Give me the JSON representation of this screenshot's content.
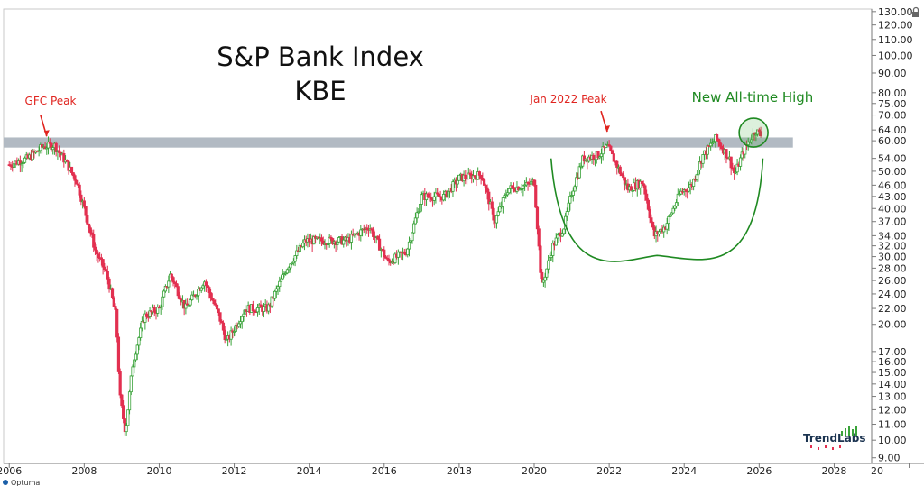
{
  "chart_data": {
    "type": "candlestick",
    "title_line1": "S&P Bank Index",
    "title_line2": "KBE",
    "y_scale": "log",
    "ylim": [
      8.7,
      132
    ],
    "xlim": [
      2005.85,
      2029.0
    ],
    "y_ticks": [
      "130.00",
      "120.00",
      "110.00",
      "100.00",
      "90.00",
      "80.00",
      "75.00",
      "70.00",
      "64.00",
      "60.00",
      "54.00",
      "50.00",
      "46.00",
      "43.00",
      "40.00",
      "37.00",
      "34.00",
      "32.00",
      "30.00",
      "28.00",
      "26.00",
      "24.00",
      "22.00",
      "20.00",
      "17.00",
      "16.00",
      "15.00",
      "14.00",
      "13.00",
      "12.00",
      "11.00",
      "10.00",
      "9.00"
    ],
    "x_ticks": [
      "2006",
      "2008",
      "2010",
      "2012",
      "2014",
      "2016",
      "2018",
      "2020",
      "2022",
      "2024",
      "2026",
      "2028",
      "20"
    ],
    "resistance_band": {
      "low": 57.6,
      "high": 61.2,
      "x_start": 2005.85,
      "x_end": 2026.9
    },
    "key_points": [
      {
        "t": 2006.0,
        "v": 52
      },
      {
        "t": 2006.5,
        "v": 54
      },
      {
        "t": 2006.9,
        "v": 58
      },
      {
        "t": 2007.2,
        "v": 58.5
      },
      {
        "t": 2007.5,
        "v": 53
      },
      {
        "t": 2007.8,
        "v": 47
      },
      {
        "t": 2008.0,
        "v": 40
      },
      {
        "t": 2008.3,
        "v": 31
      },
      {
        "t": 2008.6,
        "v": 27
      },
      {
        "t": 2008.85,
        "v": 21
      },
      {
        "t": 2008.95,
        "v": 13
      },
      {
        "t": 2009.1,
        "v": 10.5
      },
      {
        "t": 2009.3,
        "v": 16
      },
      {
        "t": 2009.6,
        "v": 21
      },
      {
        "t": 2010.0,
        "v": 22
      },
      {
        "t": 2010.3,
        "v": 27
      },
      {
        "t": 2010.7,
        "v": 22
      },
      {
        "t": 2011.2,
        "v": 26
      },
      {
        "t": 2011.6,
        "v": 21
      },
      {
        "t": 2011.8,
        "v": 18
      },
      {
        "t": 2012.3,
        "v": 22
      },
      {
        "t": 2012.9,
        "v": 22
      },
      {
        "t": 2013.4,
        "v": 28
      },
      {
        "t": 2013.9,
        "v": 33
      },
      {
        "t": 2014.5,
        "v": 33
      },
      {
        "t": 2015.0,
        "v": 33
      },
      {
        "t": 2015.6,
        "v": 36
      },
      {
        "t": 2016.1,
        "v": 29
      },
      {
        "t": 2016.6,
        "v": 31
      },
      {
        "t": 2017.0,
        "v": 43
      },
      {
        "t": 2017.6,
        "v": 43
      },
      {
        "t": 2018.0,
        "v": 48
      },
      {
        "t": 2018.6,
        "v": 49
      },
      {
        "t": 2018.95,
        "v": 37
      },
      {
        "t": 2019.3,
        "v": 45
      },
      {
        "t": 2019.8,
        "v": 46
      },
      {
        "t": 2020.0,
        "v": 47
      },
      {
        "t": 2020.2,
        "v": 25
      },
      {
        "t": 2020.5,
        "v": 32
      },
      {
        "t": 2020.8,
        "v": 36
      },
      {
        "t": 2021.0,
        "v": 44
      },
      {
        "t": 2021.3,
        "v": 54
      },
      {
        "t": 2021.7,
        "v": 55
      },
      {
        "t": 2021.95,
        "v": 58
      },
      {
        "t": 2022.2,
        "v": 52
      },
      {
        "t": 2022.5,
        "v": 45
      },
      {
        "t": 2022.9,
        "v": 47
      },
      {
        "t": 2023.2,
        "v": 34
      },
      {
        "t": 2023.5,
        "v": 36
      },
      {
        "t": 2023.9,
        "v": 44
      },
      {
        "t": 2024.2,
        "v": 46
      },
      {
        "t": 2024.5,
        "v": 55
      },
      {
        "t": 2024.85,
        "v": 61
      },
      {
        "t": 2025.2,
        "v": 54
      },
      {
        "t": 2025.35,
        "v": 49
      },
      {
        "t": 2025.6,
        "v": 57
      },
      {
        "t": 2025.9,
        "v": 64
      },
      {
        "t": 2026.05,
        "v": 62
      }
    ],
    "annotations": {
      "gfc_peak": {
        "label": "GFC Peak",
        "t": 2007.0,
        "v": 59
      },
      "jan2022_peak": {
        "label": "Jan 2022 Peak",
        "t": 2021.95,
        "v": 60
      },
      "new_high": {
        "label": "New All-time High",
        "t": 2025.85,
        "v": 63
      }
    }
  },
  "branding": {
    "logo": "TrendLabs",
    "credit": "Optuma"
  },
  "colors": {
    "up": "#3aa33a",
    "down": "#e23050",
    "band": "#b2bac3",
    "green": "#1f8a22",
    "red": "#e0241f"
  }
}
